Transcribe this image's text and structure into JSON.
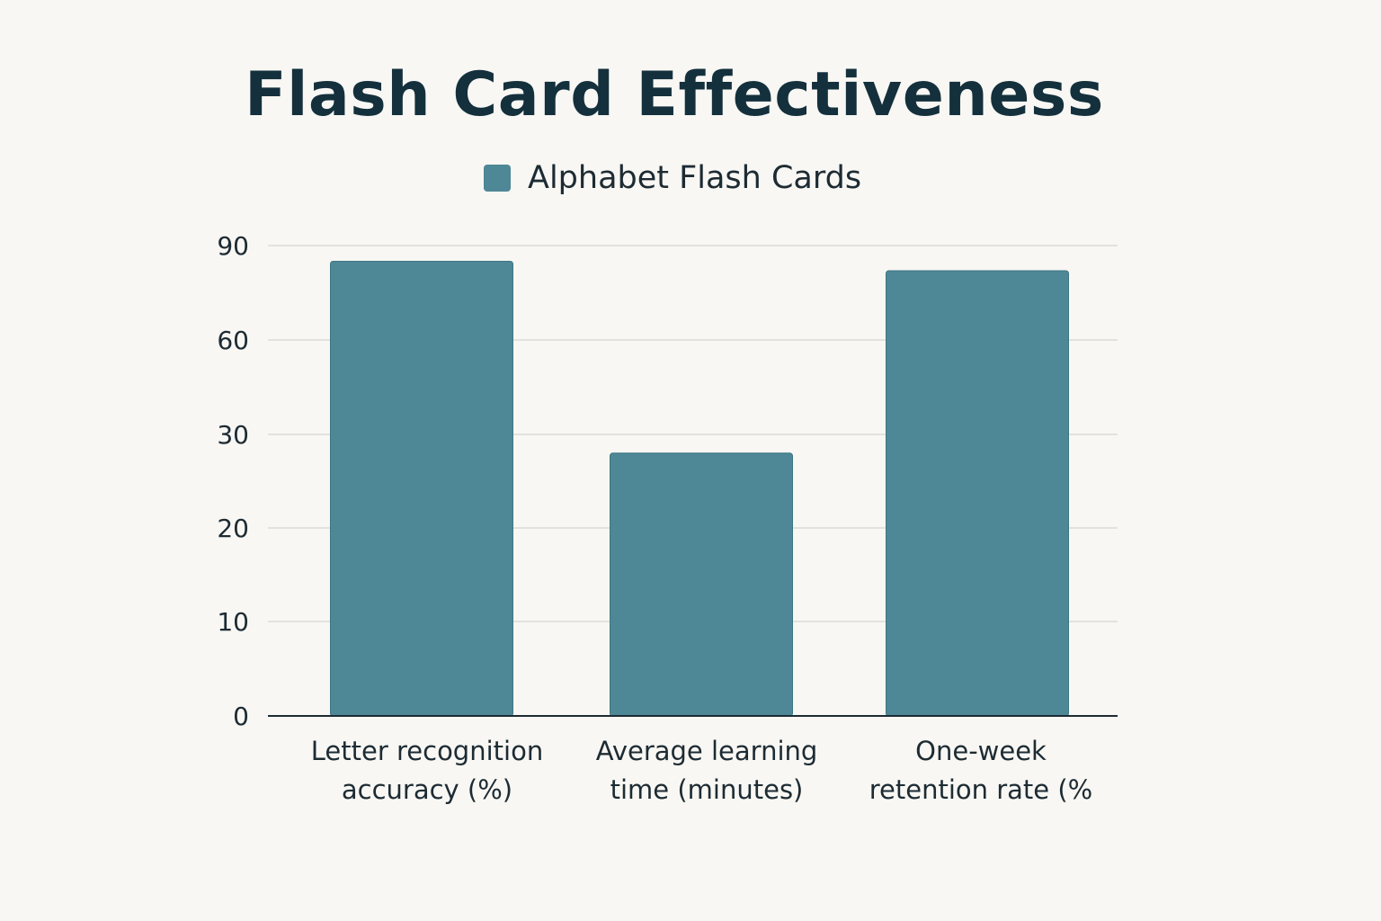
{
  "chart_data": {
    "type": "bar",
    "title": "Flash Card Effectiveness",
    "categories": [
      [
        "Letter recognition",
        "accuracy (%)"
      ],
      [
        "Average learning",
        "time (minutes)"
      ],
      [
        "One-week",
        "retention rate (%"
      ]
    ],
    "series": [
      {
        "name": "Alphabet Flash Cards",
        "color": "#4e8795",
        "values": [
          85,
          28,
          82
        ]
      }
    ],
    "y_ticks": [
      0,
      10,
      20,
      30,
      60,
      90
    ],
    "ylim": [
      0,
      90
    ],
    "grid": true,
    "legend_position": "top-center",
    "xlabel": "",
    "ylabel": ""
  }
}
